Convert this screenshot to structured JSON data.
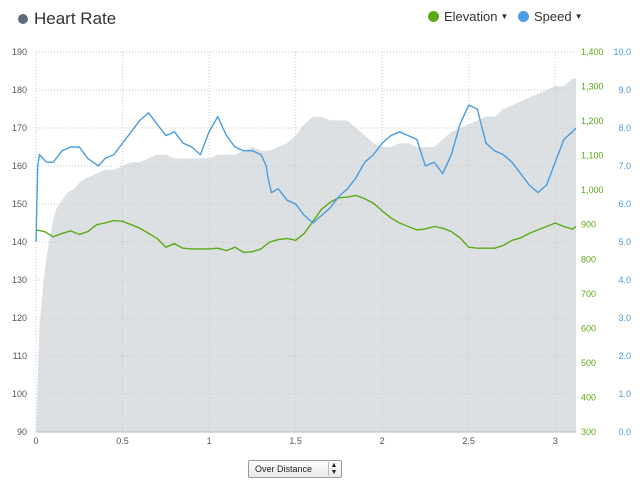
{
  "header": {
    "title": "Heart Rate",
    "legend": [
      {
        "label": "Elevation",
        "color": "#5aa915"
      },
      {
        "label": "Speed",
        "color": "#4a9de0"
      }
    ]
  },
  "controls": {
    "x_mode": "Over Distance"
  },
  "chart_data": {
    "type": "line",
    "title": "Heart Rate",
    "xlabel": "",
    "xlim": [
      0,
      3.12
    ],
    "x_ticks": [
      0,
      0.5,
      1,
      1.5,
      2,
      2.5,
      3
    ],
    "axes": {
      "heart_rate": {
        "min": 90,
        "max": 190,
        "ticks": [
          90,
          100,
          110,
          120,
          130,
          140,
          150,
          160,
          170,
          180,
          190
        ],
        "color": "#555555"
      },
      "elevation": {
        "min": 300,
        "max": 1400,
        "ticks": [
          300,
          400,
          500,
          600,
          700,
          800,
          900,
          1000,
          1100,
          1200,
          1300,
          1400
        ],
        "labels": [
          "300",
          "400",
          "500",
          "600",
          "700",
          "800",
          "900",
          "1,000",
          "1,100",
          "1,200",
          "1,300",
          "1,400"
        ],
        "color": "#5aa915"
      },
      "speed": {
        "min": 0,
        "max": 10,
        "ticks": [
          0,
          1,
          2,
          3,
          4,
          5,
          6,
          7,
          8,
          9,
          10
        ],
        "labels": [
          "0.0",
          "1.0",
          "2.0",
          "3.0",
          "4.0",
          "5.0",
          "6.0",
          "7.0",
          "8.0",
          "9.0",
          "10.0"
        ],
        "color": "#4a9de0"
      }
    },
    "series": [
      {
        "name": "Heart Rate",
        "axis": "heart_rate",
        "kind": "area",
        "color": "#dde0e3",
        "x": [
          0,
          0.02,
          0.04,
          0.06,
          0.08,
          0.1,
          0.12,
          0.15,
          0.18,
          0.22,
          0.26,
          0.3,
          0.35,
          0.4,
          0.45,
          0.5,
          0.55,
          0.6,
          0.65,
          0.7,
          0.75,
          0.8,
          0.85,
          0.9,
          0.95,
          1.0,
          1.05,
          1.1,
          1.15,
          1.2,
          1.25,
          1.3,
          1.35,
          1.4,
          1.45,
          1.5,
          1.55,
          1.6,
          1.65,
          1.7,
          1.75,
          1.8,
          1.85,
          1.9,
          1.95,
          2.0,
          2.05,
          2.1,
          2.15,
          2.2,
          2.25,
          2.3,
          2.35,
          2.4,
          2.45,
          2.5,
          2.55,
          2.6,
          2.65,
          2.7,
          2.75,
          2.8,
          2.85,
          2.9,
          2.95,
          3.0,
          3.05,
          3.1,
          3.12
        ],
        "values": [
          90,
          118,
          128,
          136,
          141,
          146,
          149,
          151,
          153,
          154,
          156,
          157,
          158,
          159,
          159,
          160,
          161,
          161,
          162,
          163,
          163,
          162,
          162,
          162,
          162,
          162,
          163,
          163,
          163,
          164,
          165,
          164,
          164,
          165,
          166,
          168,
          171,
          173,
          173,
          172,
          172,
          172,
          170,
          168,
          166,
          165,
          165,
          166,
          166,
          165,
          165,
          165,
          167,
          169,
          170,
          171,
          172,
          173,
          173,
          175,
          176,
          177,
          178,
          179,
          180,
          181,
          181,
          183,
          183
        ]
      },
      {
        "name": "Elevation",
        "axis": "elevation",
        "kind": "line",
        "color": "#5aa915",
        "x": [
          0,
          0.05,
          0.1,
          0.15,
          0.2,
          0.25,
          0.3,
          0.35,
          0.4,
          0.45,
          0.5,
          0.55,
          0.6,
          0.65,
          0.7,
          0.75,
          0.8,
          0.85,
          0.9,
          0.95,
          1.0,
          1.05,
          1.1,
          1.15,
          1.2,
          1.25,
          1.3,
          1.35,
          1.4,
          1.45,
          1.5,
          1.55,
          1.6,
          1.65,
          1.7,
          1.75,
          1.8,
          1.85,
          1.9,
          1.95,
          2.0,
          2.05,
          2.1,
          2.15,
          2.2,
          2.25,
          2.3,
          2.35,
          2.4,
          2.45,
          2.5,
          2.55,
          2.6,
          2.65,
          2.7,
          2.75,
          2.8,
          2.85,
          2.9,
          2.95,
          3.0,
          3.05,
          3.1,
          3.12
        ],
        "values": [
          885,
          880,
          865,
          875,
          882,
          872,
          880,
          900,
          905,
          912,
          910,
          900,
          890,
          875,
          860,
          835,
          845,
          832,
          830,
          830,
          830,
          832,
          825,
          835,
          820,
          822,
          830,
          850,
          857,
          860,
          855,
          875,
          910,
          945,
          965,
          978,
          980,
          985,
          975,
          962,
          940,
          920,
          905,
          895,
          885,
          888,
          895,
          890,
          880,
          862,
          835,
          832,
          832,
          832,
          840,
          855,
          862,
          875,
          885,
          895,
          905,
          895,
          887,
          895
        ]
      },
      {
        "name": "Speed",
        "axis": "speed",
        "kind": "line",
        "color": "#4a9de0",
        "x": [
          0,
          0.01,
          0.02,
          0.04,
          0.06,
          0.1,
          0.15,
          0.2,
          0.25,
          0.3,
          0.33,
          0.36,
          0.4,
          0.45,
          0.5,
          0.55,
          0.6,
          0.65,
          0.7,
          0.75,
          0.8,
          0.85,
          0.9,
          0.95,
          1.0,
          1.05,
          1.1,
          1.15,
          1.2,
          1.25,
          1.3,
          1.33,
          1.34,
          1.36,
          1.4,
          1.45,
          1.5,
          1.55,
          1.6,
          1.65,
          1.7,
          1.75,
          1.8,
          1.85,
          1.9,
          1.95,
          2.0,
          2.05,
          2.1,
          2.15,
          2.2,
          2.25,
          2.3,
          2.35,
          2.4,
          2.45,
          2.5,
          2.55,
          2.6,
          2.65,
          2.7,
          2.75,
          2.8,
          2.85,
          2.9,
          2.95,
          3.0,
          3.05,
          3.1,
          3.12
        ],
        "values": [
          5.0,
          7.0,
          7.3,
          7.2,
          7.1,
          7.1,
          7.4,
          7.5,
          7.5,
          7.2,
          7.1,
          7.0,
          7.2,
          7.3,
          7.6,
          7.9,
          8.2,
          8.4,
          8.1,
          7.8,
          7.9,
          7.6,
          7.5,
          7.3,
          7.9,
          8.3,
          7.8,
          7.5,
          7.4,
          7.4,
          7.3,
          7.0,
          6.7,
          6.3,
          6.4,
          6.1,
          6.0,
          5.7,
          5.5,
          5.7,
          5.9,
          6.2,
          6.4,
          6.7,
          7.1,
          7.3,
          7.6,
          7.8,
          7.9,
          7.8,
          7.7,
          7.0,
          7.1,
          6.8,
          7.3,
          8.1,
          8.6,
          8.5,
          7.6,
          7.4,
          7.3,
          7.1,
          6.8,
          6.5,
          6.3,
          6.5,
          7.1,
          7.7,
          7.9,
          8.0
        ]
      }
    ]
  }
}
